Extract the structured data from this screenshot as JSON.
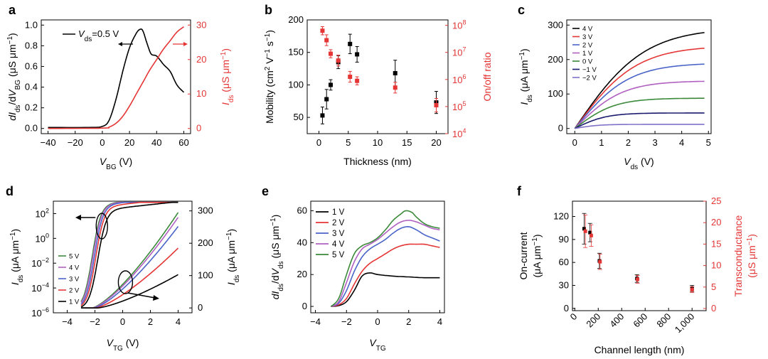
{
  "chart_data": [
    {
      "id": "a",
      "type": "line",
      "panel_label": "a",
      "xlabel": "V",
      "xlabel_sub": "BG",
      "xlabel_unit": " (V)",
      "ylabel": "dI_ds/dV_BG (μS μm⁻¹)",
      "y2label": "I_ds (μS μm⁻¹)",
      "xlim": [
        -45,
        65
      ],
      "ylim": [
        -0.05,
        1.05
      ],
      "y2lim": [
        -1.5,
        31.5
      ],
      "xticks": [
        -40,
        -20,
        0,
        20,
        40,
        60
      ],
      "yticks": [
        0.0,
        0.2,
        0.4,
        0.6,
        0.8,
        1.0
      ],
      "y2ticks": [
        0,
        10,
        20,
        30
      ],
      "ytick_labels": [
        "0.0",
        "0.2",
        "0.4",
        "0.6",
        "0.8",
        "1.0"
      ],
      "y2tick_labels": [
        "0",
        "10",
        "20",
        "30"
      ],
      "xtick_labels": [
        "−40",
        "−20",
        "0",
        "20",
        "40",
        "60"
      ],
      "legend": "V_ds=0.5 V",
      "colors": {
        "left": "#000000",
        "right": "#e53535"
      },
      "series": [
        {
          "name": "dIds/dVBG",
          "axis": "left",
          "color": "#000000",
          "x": [
            -40,
            -10,
            0,
            5,
            10,
            15,
            20,
            25,
            28,
            30,
            33,
            36,
            40,
            45,
            50,
            55,
            60
          ],
          "y": [
            0.01,
            0.01,
            0.02,
            0.08,
            0.28,
            0.55,
            0.78,
            0.92,
            0.96,
            0.94,
            0.82,
            0.72,
            0.7,
            0.62,
            0.55,
            0.42,
            0.35
          ]
        },
        {
          "name": "Ids",
          "axis": "right",
          "color": "#e53535",
          "x": [
            -40,
            0,
            5,
            10,
            15,
            20,
            25,
            30,
            35,
            40,
            45,
            50,
            55,
            60
          ],
          "y": [
            0,
            0.1,
            0.4,
            1.5,
            3.5,
            6.5,
            10,
            13.5,
            17,
            20,
            23,
            25.5,
            28,
            29.5
          ]
        }
      ]
    },
    {
      "id": "b",
      "type": "scatter",
      "panel_label": "b",
      "xlabel": "Thickness (nm)",
      "ylabel": "Mobility (cm² V⁻¹ s⁻¹)",
      "y2label": "On/off ratio",
      "xlim": [
        -2,
        22
      ],
      "ylim": [
        25,
        200
      ],
      "y2lim": [
        4,
        8.2
      ],
      "xticks": [
        0,
        5,
        10,
        15,
        20
      ],
      "xtick_labels": [
        "0",
        "5",
        "10",
        "15",
        "20"
      ],
      "yticks": [
        50,
        100,
        150,
        200
      ],
      "ytick_labels": [
        "50",
        "100",
        "150",
        "200"
      ],
      "y2ticks": [
        4,
        5,
        6,
        7,
        8
      ],
      "y2tick_labels": [
        "10",
        "10",
        "10",
        "10",
        "10"
      ],
      "y2tick_exp": [
        "4",
        "5",
        "6",
        "7",
        "8"
      ],
      "series": [
        {
          "name": "Mobility",
          "axis": "left",
          "color": "#000000",
          "x": [
            0.6,
            1.3,
            2.0,
            3.3,
            5.3,
            6.5,
            13.0,
            20.0
          ],
          "y": [
            53,
            78,
            100,
            135,
            163,
            147,
            118,
            73
          ],
          "err": [
            13,
            15,
            8,
            10,
            15,
            12,
            20,
            17
          ]
        },
        {
          "name": "On/off",
          "axis": "right",
          "color": "#e53535",
          "x": [
            0.6,
            1.3,
            2.0,
            3.3,
            5.3,
            6.5,
            13.0,
            20.0
          ],
          "y": [
            7.8,
            7.45,
            6.95,
            6.7,
            6.1,
            5.95,
            5.7,
            5.05
          ],
          "err": [
            0.15,
            0.2,
            0.15,
            0.2,
            0.2,
            0.15,
            0.2,
            0.25
          ]
        }
      ]
    },
    {
      "id": "c",
      "type": "line",
      "panel_label": "c",
      "xlabel": "V",
      "xlabel_sub": "ds",
      "xlabel_unit": " (V)",
      "ylabel": "I_ds (μA μm⁻¹)",
      "xlim": [
        -0.3,
        5.1
      ],
      "ylim": [
        -15,
        315
      ],
      "xticks": [
        0,
        1,
        2,
        3,
        4,
        5
      ],
      "xtick_labels": [
        "0",
        "1",
        "2",
        "3",
        "4",
        "5"
      ],
      "yticks": [
        0,
        100,
        200,
        300
      ],
      "ytick_labels": [
        "0",
        "100",
        "200",
        "300"
      ],
      "legend_labels": [
        "4 V",
        "3 V",
        "2 V",
        "1 V",
        "0 V",
        "−1 V",
        "−2 V"
      ],
      "series": [
        {
          "name": "4 V",
          "color": "#000000",
          "sat": 292,
          "k": 0.55
        },
        {
          "name": "3 V",
          "color": "#e53535",
          "sat": 240,
          "k": 0.62
        },
        {
          "name": "2 V",
          "color": "#4a64c8",
          "sat": 190,
          "k": 0.7
        },
        {
          "name": "1 V",
          "color": "#b060c0",
          "sat": 138,
          "k": 0.8
        },
        {
          "name": "0 V",
          "color": "#3a8a3a",
          "sat": 88,
          "k": 0.95
        },
        {
          "name": "−1 V",
          "color": "#1a1a6e",
          "sat": 45,
          "k": 1.2
        },
        {
          "name": "−2 V",
          "color": "#8070c8",
          "sat": 12,
          "k": 1.6
        }
      ]
    },
    {
      "id": "d",
      "type": "line",
      "panel_label": "d",
      "xlabel": "V",
      "xlabel_sub": "TG",
      "xlabel_unit": " (V)",
      "ylabel": "I_ds (μA μm⁻¹)",
      "y2label": "I_ds (μA μm⁻¹)",
      "xlim": [
        -5,
        5
      ],
      "ylim": [
        -6,
        3
      ],
      "y2lim": [
        -15,
        330
      ],
      "xticks": [
        -4,
        -2,
        0,
        2,
        4
      ],
      "xtick_labels": [
        "−4",
        "−2",
        "0",
        "2",
        "4"
      ],
      "yticks": [
        -6,
        -4,
        -2,
        0,
        2
      ],
      "ytick_labels": [
        "10",
        "10",
        "10",
        "10",
        "10"
      ],
      "ytick_exp": [
        "−6",
        "−4",
        "−2",
        "0",
        "2"
      ],
      "y2ticks": [
        0,
        100,
        200,
        300
      ],
      "y2tick_labels": [
        "0",
        "100",
        "200",
        "300"
      ],
      "legend_labels": [
        "5 V",
        "4 V",
        "3 V",
        "2 V",
        "1 V"
      ],
      "series": [
        {
          "name": "5 V",
          "color": "#3a8a3a",
          "vth": -2.2,
          "lin_max": 295
        },
        {
          "name": "4 V",
          "color": "#b060c0",
          "vth": -2.15,
          "lin_max": 280
        },
        {
          "name": "3 V",
          "color": "#4a64c8",
          "vth": -2.05,
          "lin_max": 252
        },
        {
          "name": "2 V",
          "color": "#e53535",
          "vth": -1.95,
          "lin_max": 185
        },
        {
          "name": "1 V",
          "color": "#000000",
          "vth": -1.8,
          "lin_max": 103
        }
      ]
    },
    {
      "id": "e",
      "type": "line",
      "panel_label": "e",
      "xlabel": "V",
      "xlabel_sub": "TG",
      "xlabel_unit": "",
      "ylabel": "dI_ds/dV_ds (μS μm⁻¹)",
      "xlim": [
        -4.3,
        4.3
      ],
      "ylim": [
        -4,
        66
      ],
      "xticks": [
        -4,
        -2,
        0,
        2,
        4
      ],
      "xtick_labels": [
        "−4",
        "−2",
        "0",
        "2",
        "4"
      ],
      "yticks": [
        0,
        20,
        40,
        60
      ],
      "ytick_labels": [
        "0",
        "20",
        "40",
        "60"
      ],
      "legend_labels": [
        "1 V",
        "2 V",
        "3 V",
        "4 V",
        "5 V"
      ],
      "series": [
        {
          "name": "1 V",
          "color": "#000000",
          "x": [
            -3,
            -2.5,
            -2,
            -1.5,
            -1,
            -0.5,
            0,
            1,
            2,
            3,
            4
          ],
          "y": [
            0,
            0.5,
            3,
            10,
            19,
            21,
            20,
            19,
            18.5,
            18,
            18
          ]
        },
        {
          "name": "2 V",
          "color": "#e53535",
          "x": [
            -3,
            -2.5,
            -2,
            -1.5,
            -1,
            -0.5,
            0,
            0.5,
            1,
            1.5,
            2,
            2.5,
            3,
            3.5,
            4
          ],
          "y": [
            0,
            1,
            5,
            14,
            22,
            27,
            30,
            33,
            36,
            38,
            39,
            39,
            39,
            38,
            37
          ]
        },
        {
          "name": "3 V",
          "color": "#4a64c8",
          "x": [
            -3,
            -2.5,
            -2,
            -1.5,
            -1,
            -0.5,
            0,
            0.5,
            1,
            1.5,
            2,
            2.5,
            3,
            3.5,
            4
          ],
          "y": [
            0,
            2,
            10,
            22,
            31,
            36,
            39,
            42,
            46,
            49,
            50,
            48,
            45,
            43,
            41
          ]
        },
        {
          "name": "4 V",
          "color": "#b060c0",
          "x": [
            -3,
            -2.5,
            -2,
            -1.5,
            -1,
            -0.5,
            0,
            0.5,
            1,
            1.5,
            2,
            2.5,
            3,
            3.5,
            4
          ],
          "y": [
            0,
            3,
            15,
            28,
            36,
            39,
            42,
            46,
            50,
            53,
            54,
            53,
            51,
            49,
            48
          ]
        },
        {
          "name": "5 V",
          "color": "#3a8a3a",
          "x": [
            -3,
            -2.5,
            -2,
            -1.5,
            -1,
            -0.5,
            0,
            0.5,
            1,
            1.5,
            1.8,
            2.2,
            2.5,
            3,
            3.5,
            4
          ],
          "y": [
            0,
            5,
            20,
            33,
            38,
            40,
            43,
            48,
            54,
            58,
            60,
            59,
            56,
            52,
            50,
            49
          ]
        }
      ]
    },
    {
      "id": "f",
      "type": "scatter",
      "panel_label": "f",
      "xlabel": "Channel length (nm)",
      "ylabel": "On-current",
      "ylabel2_line": "(μA μm⁻¹)",
      "y2label": "Transconductance",
      "y2label2_line": "(μS μm⁻¹)",
      "xlim": [
        -20,
        1120
      ],
      "ylim": [
        -3,
        140
      ],
      "y2lim": [
        -0.5,
        25
      ],
      "xticks": [
        0,
        200,
        400,
        600,
        800,
        1000
      ],
      "xtick_labels": [
        "0",
        "200",
        "400",
        "600",
        "800",
        "1,000"
      ],
      "yticks": [
        0,
        30,
        60,
        90,
        120
      ],
      "ytick_labels": [
        "0",
        "30",
        "60",
        "90",
        "120"
      ],
      "y2ticks": [
        0,
        5,
        10,
        15,
        20,
        25
      ],
      "y2tick_labels": [
        "0",
        "5",
        "10",
        "15",
        "20",
        "25"
      ],
      "series": [
        {
          "name": "On-current",
          "axis": "left",
          "color": "#000000",
          "x": [
            80,
            130,
            210,
            530,
            1000
          ],
          "y": [
            104,
            99,
            62,
            39,
            26
          ],
          "err": [
            20,
            12,
            10,
            5,
            4
          ]
        },
        {
          "name": "Transconductance",
          "axis": "right",
          "color": "#e53535",
          "x": [
            90,
            140,
            215,
            535,
            1000
          ],
          "y": [
            18.0,
            17.0,
            10.9,
            6.8,
            4.4
          ],
          "err": [
            3.8,
            2.5,
            1.8,
            0.9,
            0.7
          ]
        }
      ]
    }
  ]
}
